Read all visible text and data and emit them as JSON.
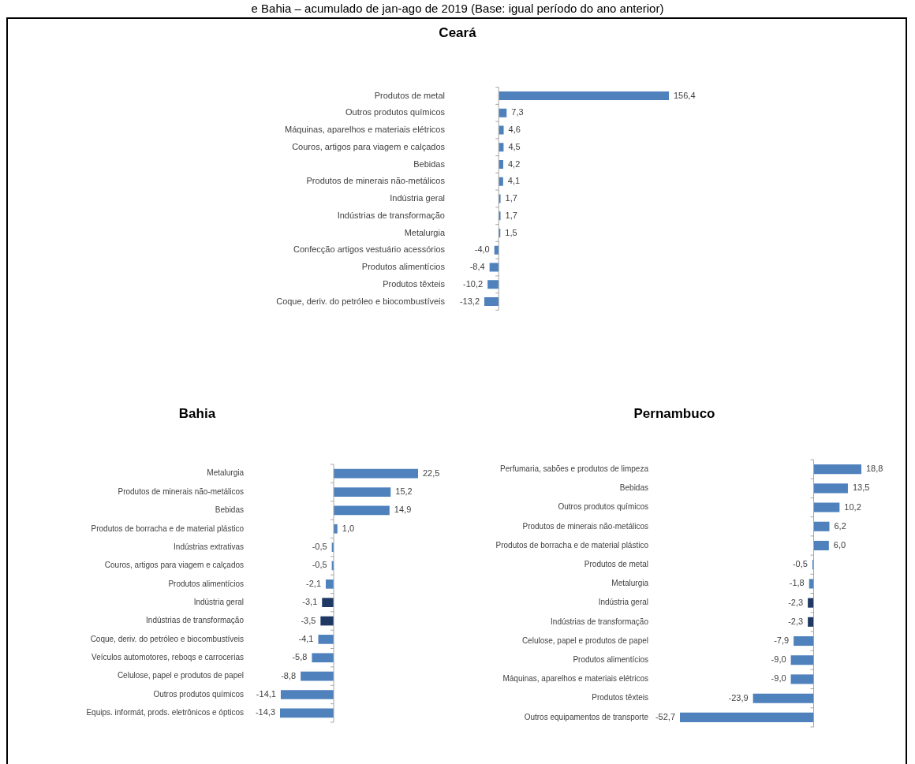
{
  "chart_data": [
    {
      "type": "bar",
      "orientation": "horizontal",
      "title": "Ceará",
      "annotations": [
        "e Bahia – acumulado de jan-ago de 2019 (Base: igual período do ano anterior)"
      ],
      "categories": [
        "Produtos de metal",
        "Outros produtos químicos",
        "Máquinas, aparelhos e materiais elétricos",
        "Couros, artigos para viagem e calçados",
        "Bebidas",
        "Produtos de minerais não-metálicos",
        "Indústria geral",
        "Indústrias de transformação",
        "Metalurgia",
        "Confecção artigos vestuário acessórios",
        "Produtos alimentícios",
        "Produtos têxteis",
        "Coque, deriv. do petróleo e biocombustíveis"
      ],
      "values": [
        156.4,
        7.3,
        4.6,
        4.5,
        4.2,
        4.1,
        1.7,
        1.7,
        1.5,
        -4.0,
        -8.4,
        -10.2,
        -13.2
      ],
      "value_labels": [
        "156,4",
        "7,3",
        "4,6",
        "4,5",
        "4,2",
        "4,1",
        "1,7",
        "1,7",
        "1,5",
        "-4,0",
        "-8,4",
        "-10,2",
        "-13,2"
      ],
      "colors": [
        "#4f81bd",
        "#4f81bd",
        "#4f81bd",
        "#4f81bd",
        "#4f81bd",
        "#4f81bd",
        "#4f81bd",
        "#4f81bd",
        "#4f81bd",
        "#4f81bd",
        "#4f81bd",
        "#4f81bd",
        "#4f81bd"
      ]
    },
    {
      "type": "bar",
      "orientation": "horizontal",
      "title": "Bahia",
      "categories": [
        "Metalurgia",
        "Produtos de minerais não-metálicos",
        "Bebidas",
        "Produtos de borracha e de material plástico",
        "Indústrias extrativas",
        "Couros, artigos para viagem e calçados",
        "Produtos alimentícios",
        "Indústria geral",
        "Indústrias de transformação",
        "Coque, deriv. do petróleo e biocombustíveis",
        "Veículos automotores, reboqs e carrocerias",
        "Celulose, papel e produtos de papel",
        "Outros produtos químicos",
        "Equips. informát, prods. eletrônicos e ópticos"
      ],
      "values": [
        22.5,
        15.2,
        14.9,
        1.0,
        -0.5,
        -0.5,
        -2.1,
        -3.1,
        -3.5,
        -4.1,
        -5.8,
        -8.8,
        -14.1,
        -14.3
      ],
      "value_labels": [
        "22,5",
        "15,2",
        "14,9",
        "1,0",
        "-0,5",
        "-0,5",
        "-2,1",
        "-3,1",
        "-3,5",
        "-4,1",
        "-5,8",
        "-8,8",
        "-14,1",
        "-14,3"
      ],
      "colors": [
        "#4f81bd",
        "#4f81bd",
        "#4f81bd",
        "#4f81bd",
        "#4f81bd",
        "#4f81bd",
        "#4f81bd",
        "#1f3864",
        "#1f3864",
        "#4f81bd",
        "#4f81bd",
        "#4f81bd",
        "#4f81bd",
        "#4f81bd"
      ]
    },
    {
      "type": "bar",
      "orientation": "horizontal",
      "title": "Pernambuco",
      "categories": [
        "Perfumaria, sabões e produtos de limpeza",
        "Bebidas",
        "Outros produtos químicos",
        "Produtos de minerais não-metálicos",
        "Produtos de borracha e de material plástico",
        "Produtos de metal",
        "Metalurgia",
        "Indústria geral",
        "Indústrias de transformação",
        "Celulose, papel e produtos de papel",
        "Produtos alimentícios",
        "Máquinas, aparelhos e materiais elétricos",
        "Produtos têxteis",
        "Outros equipamentos de transporte"
      ],
      "values": [
        18.8,
        13.5,
        10.2,
        6.2,
        6.0,
        -0.5,
        -1.8,
        -2.3,
        -2.3,
        -7.9,
        -9.0,
        -9.0,
        -23.9,
        -52.7
      ],
      "value_labels": [
        "18,8",
        "13,5",
        "10,2",
        "6,2",
        "6,0",
        "-0,5",
        "-1,8",
        "-2,3",
        "-2,3",
        "-7,9",
        "-9,0",
        "-9,0",
        "-23,9",
        "-52,7"
      ],
      "colors": [
        "#4f81bd",
        "#4f81bd",
        "#4f81bd",
        "#4f81bd",
        "#4f81bd",
        "#4f81bd",
        "#4f81bd",
        "#1f3864",
        "#1f3864",
        "#4f81bd",
        "#4f81bd",
        "#4f81bd",
        "#4f81bd",
        "#4f81bd"
      ]
    }
  ]
}
